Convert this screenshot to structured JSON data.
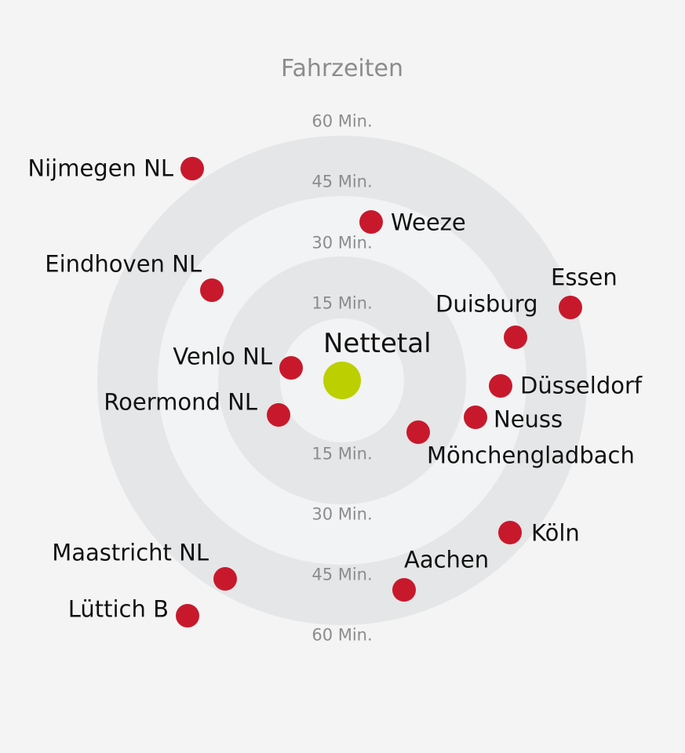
{
  "title": "Fahrzeiten",
  "colors": {
    "background": "#f4f4f4",
    "ring_dark": "#e5e6e7",
    "ring_light": "#f2f3f4",
    "city_dot": "#c8192c",
    "center_dot": "#bccf00"
  },
  "ring_labels_top": [
    "60 Min.",
    "45 Min.",
    "30 Min.",
    "15 Min."
  ],
  "ring_labels_bottom": [
    "15 Min.",
    "30 Min.",
    "45 Min.",
    "60 Min."
  ],
  "center": {
    "label": "Nettetal"
  },
  "cities": [
    {
      "label": "Nijmegen NL"
    },
    {
      "label": "Weeze"
    },
    {
      "label": "Eindhoven NL"
    },
    {
      "label": "Essen"
    },
    {
      "label": "Duisburg"
    },
    {
      "label": "Venlo NL"
    },
    {
      "label": "Düsseldorf"
    },
    {
      "label": "Roermond NL"
    },
    {
      "label": "Neuss"
    },
    {
      "label": "Mönchengladbach"
    },
    {
      "label": "Köln"
    },
    {
      "label": "Maastricht NL"
    },
    {
      "label": "Aachen"
    },
    {
      "label": "Lüttich B"
    }
  ]
}
